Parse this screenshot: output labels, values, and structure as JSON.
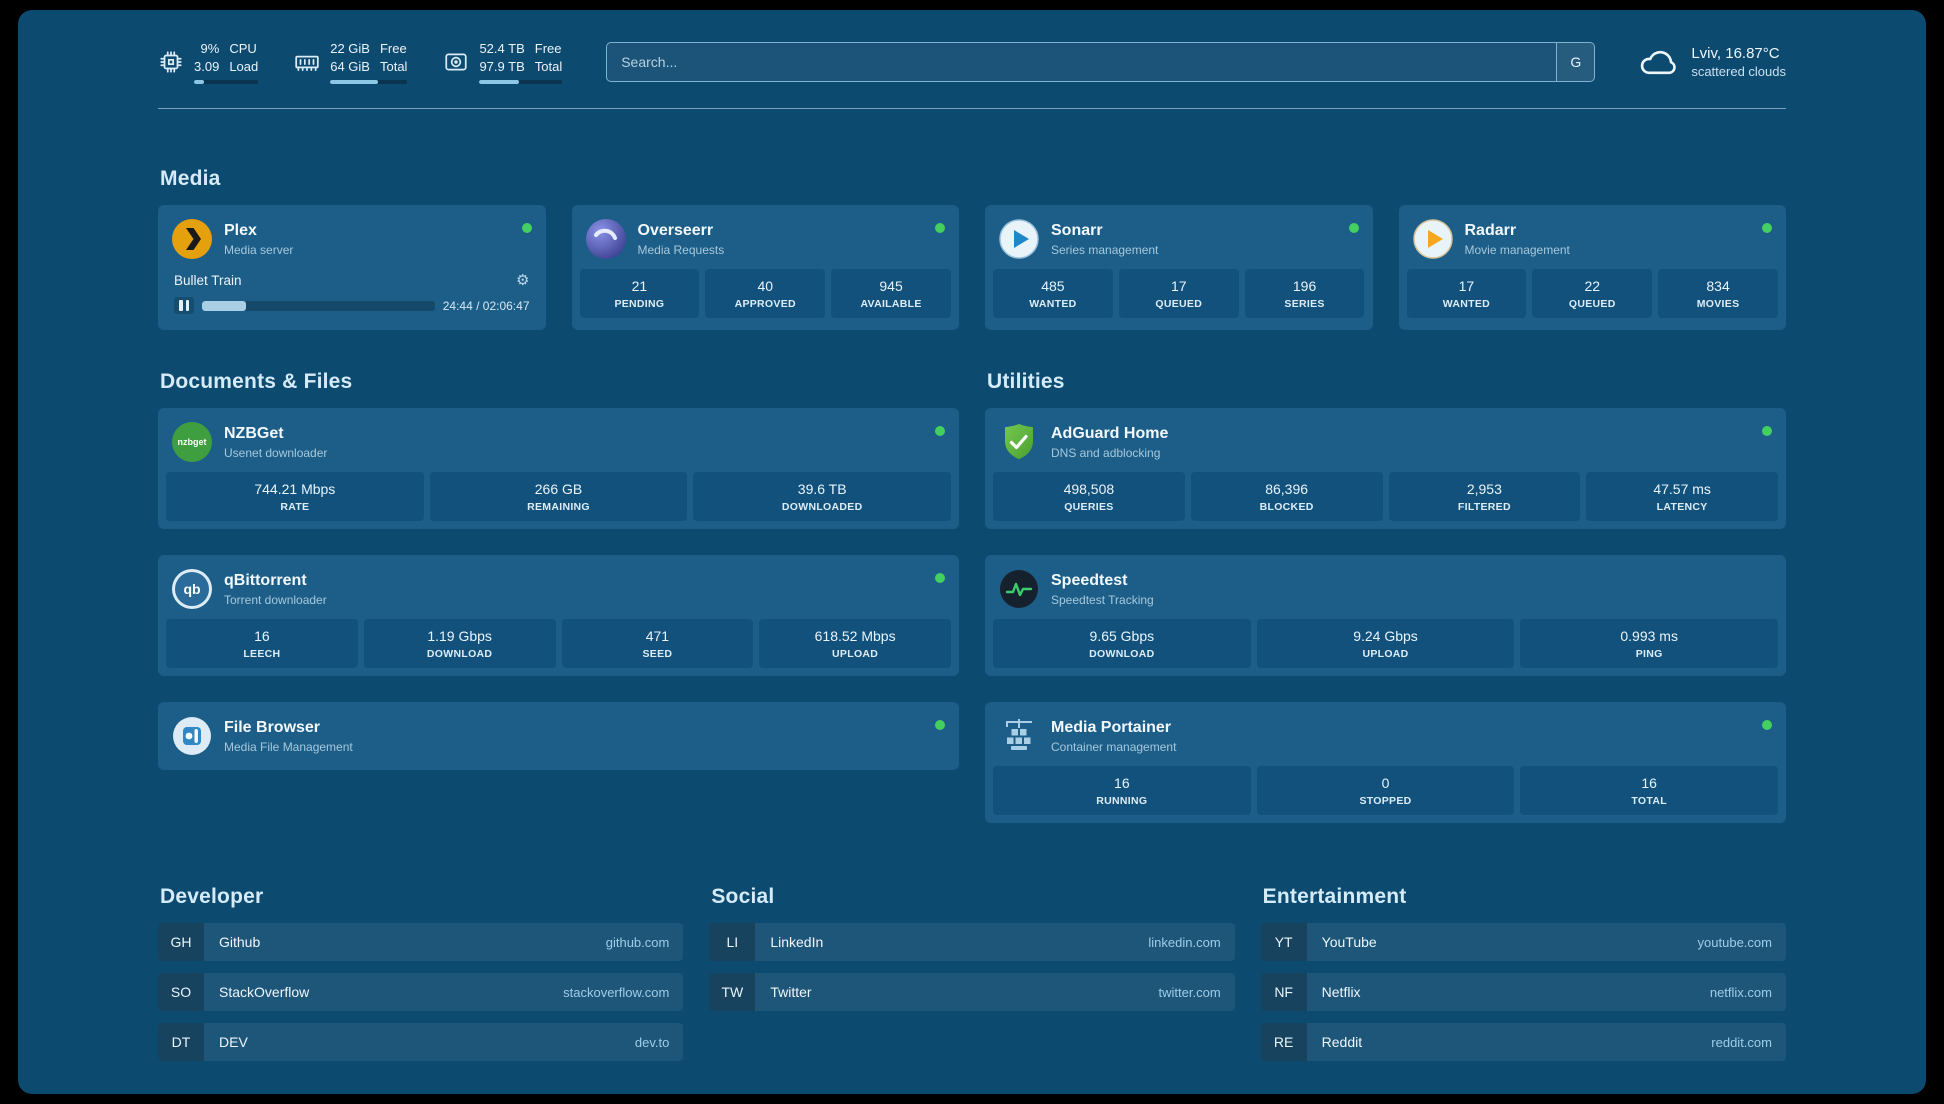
{
  "colors": {
    "page-bg": "#0d4a70",
    "card-bg": "#1c5e88",
    "tile-bg": "#12517b",
    "status-green": "#43d05f",
    "accent-border": "#7fb3cf"
  },
  "topbar": {
    "resources": [
      {
        "name": "cpu",
        "v1": "9%",
        "v2": "3.09",
        "l1": "CPU",
        "l2": "Load",
        "progress": 16
      },
      {
        "name": "memory",
        "v1": "22 GiB",
        "v2": "64 GiB",
        "l1": "Free",
        "l2": "Total",
        "progress": 62
      },
      {
        "name": "disk",
        "v1": "52.4 TB",
        "v2": "97.9 TB",
        "l1": "Free",
        "l2": "Total",
        "progress": 48
      }
    ],
    "search": {
      "placeholder": "Search...",
      "provider_label": "G"
    },
    "weather": {
      "location": "Lviv, 16.87°C",
      "condition": "scattered clouds"
    }
  },
  "sections": {
    "media": {
      "title": "Media",
      "plex": {
        "name": "Plex",
        "subtitle": "Media server",
        "now_playing": "Bullet Train",
        "time": "24:44 / 02:06:47",
        "progress": 19
      },
      "overseerr": {
        "name": "Overseerr",
        "subtitle": "Media Requests",
        "stats": [
          {
            "value": "21",
            "label": "PENDING"
          },
          {
            "value": "40",
            "label": "APPROVED"
          },
          {
            "value": "945",
            "label": "AVAILABLE"
          }
        ]
      },
      "sonarr": {
        "name": "Sonarr",
        "subtitle": "Series management",
        "stats": [
          {
            "value": "485",
            "label": "WANTED"
          },
          {
            "value": "17",
            "label": "QUEUED"
          },
          {
            "value": "196",
            "label": "SERIES"
          }
        ]
      },
      "radarr": {
        "name": "Radarr",
        "subtitle": "Movie management",
        "stats": [
          {
            "value": "17",
            "label": "WANTED"
          },
          {
            "value": "22",
            "label": "QUEUED"
          },
          {
            "value": "834",
            "label": "MOVIES"
          }
        ]
      }
    },
    "documents": {
      "title": "Documents & Files",
      "nzbget": {
        "name": "NZBGet",
        "subtitle": "Usenet downloader",
        "icon_text": "nzbget",
        "stats": [
          {
            "value": "744.21 Mbps",
            "label": "RATE"
          },
          {
            "value": "266 GB",
            "label": "REMAINING"
          },
          {
            "value": "39.6 TB",
            "label": "DOWNLOADED"
          }
        ]
      },
      "qbittorrent": {
        "name": "qBittorrent",
        "subtitle": "Torrent downloader",
        "icon_text": "qb",
        "stats": [
          {
            "value": "16",
            "label": "LEECH"
          },
          {
            "value": "1.19 Gbps",
            "label": "DOWNLOAD"
          },
          {
            "value": "471",
            "label": "SEED"
          },
          {
            "value": "618.52 Mbps",
            "label": "UPLOAD"
          }
        ]
      },
      "filebrowser": {
        "name": "File Browser",
        "subtitle": "Media File Management"
      }
    },
    "utilities": {
      "title": "Utilities",
      "adguard": {
        "name": "AdGuard Home",
        "subtitle": "DNS and adblocking",
        "stats": [
          {
            "value": "498,508",
            "label": "QUERIES"
          },
          {
            "value": "86,396",
            "label": "BLOCKED"
          },
          {
            "value": "2,953",
            "label": "FILTERED"
          },
          {
            "value": "47.57 ms",
            "label": "LATENCY"
          }
        ]
      },
      "speedtest": {
        "name": "Speedtest",
        "subtitle": "Speedtest Tracking",
        "stats": [
          {
            "value": "9.65 Gbps",
            "label": "DOWNLOAD"
          },
          {
            "value": "9.24 Gbps",
            "label": "UPLOAD"
          },
          {
            "value": "0.993 ms",
            "label": "PING"
          }
        ]
      },
      "portainer": {
        "name": "Media Portainer",
        "subtitle": "Container management",
        "stats": [
          {
            "value": "16",
            "label": "RUNNING"
          },
          {
            "value": "0",
            "label": "STOPPED"
          },
          {
            "value": "16",
            "label": "TOTAL"
          }
        ]
      }
    },
    "bookmarks": [
      {
        "title": "Developer",
        "links": [
          {
            "abbr": "GH",
            "name": "Github",
            "url": "github.com"
          },
          {
            "abbr": "SO",
            "name": "StackOverflow",
            "url": "stackoverflow.com"
          },
          {
            "abbr": "DT",
            "name": "DEV",
            "url": "dev.to"
          }
        ]
      },
      {
        "title": "Social",
        "links": [
          {
            "abbr": "LI",
            "name": "LinkedIn",
            "url": "linkedin.com"
          },
          {
            "abbr": "TW",
            "name": "Twitter",
            "url": "twitter.com"
          }
        ]
      },
      {
        "title": "Entertainment",
        "links": [
          {
            "abbr": "YT",
            "name": "YouTube",
            "url": "youtube.com"
          },
          {
            "abbr": "NF",
            "name": "Netflix",
            "url": "netflix.com"
          },
          {
            "abbr": "RE",
            "name": "Reddit",
            "url": "reddit.com"
          }
        ]
      }
    ]
  }
}
